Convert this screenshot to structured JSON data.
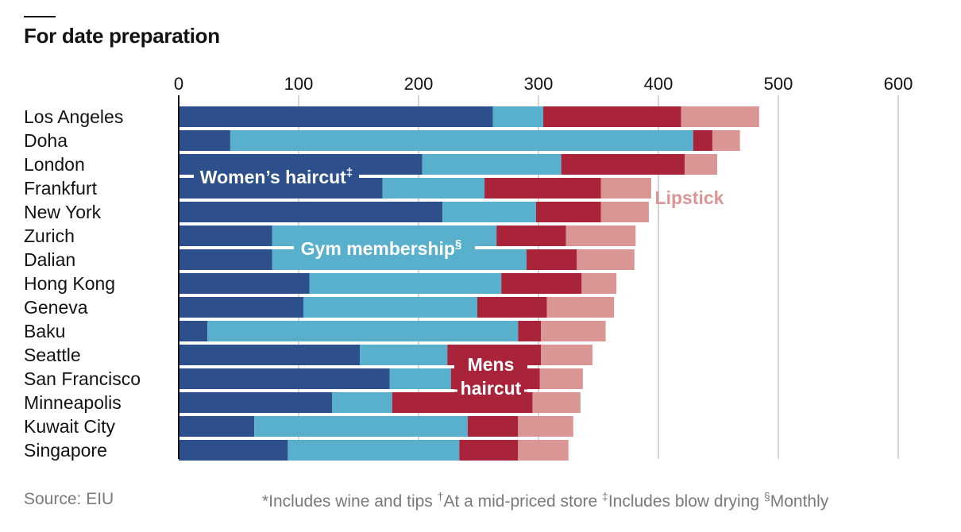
{
  "title": "For date preparation",
  "chart_data": {
    "type": "bar",
    "stacked": true,
    "orientation": "horizontal",
    "xlim": [
      0,
      600
    ],
    "ticks": [
      0,
      100,
      200,
      300,
      400,
      500,
      600
    ],
    "grid": true,
    "categories": [
      "Los Angeles",
      "Doha",
      "London",
      "Frankfurt",
      "New York",
      "Zurich",
      "Dalian",
      "Hong Kong",
      "Geneva",
      "Baku",
      "Seattle",
      "San Francisco",
      "Minneapolis",
      "Kuwait City",
      "Singapore"
    ],
    "series": [
      {
        "name": "Women’s haircut",
        "marker": "‡",
        "color": "#2d4f8c",
        "values": [
          262,
          43,
          203,
          170,
          220,
          78,
          78,
          109,
          104,
          24,
          151,
          176,
          128,
          63,
          91
        ]
      },
      {
        "name": "Gym membership",
        "marker": "§",
        "color": "#58b0cc",
        "values": [
          42,
          386,
          116,
          85,
          78,
          187,
          212,
          160,
          145,
          259,
          73,
          51,
          50,
          178,
          143
        ]
      },
      {
        "name": "Mens haircut",
        "color": "#a9243a",
        "values": [
          115,
          16,
          103,
          97,
          54,
          58,
          42,
          67,
          58,
          19,
          78,
          74,
          117,
          42,
          49
        ]
      },
      {
        "name": "Lipstick",
        "color": "#d99694",
        "values": [
          65,
          23,
          27,
          42,
          40,
          58,
          48,
          29,
          56,
          54,
          43,
          36,
          40,
          46,
          42
        ]
      }
    ]
  },
  "footer": {
    "source": "Source: EIU",
    "note1": "*Includes wine and tips ",
    "dagger": "†",
    "note2": "At a mid-priced store ",
    "ddagger": "‡",
    "note3": "Includes blow drying ",
    "section": "§",
    "note4": "Monthly"
  }
}
